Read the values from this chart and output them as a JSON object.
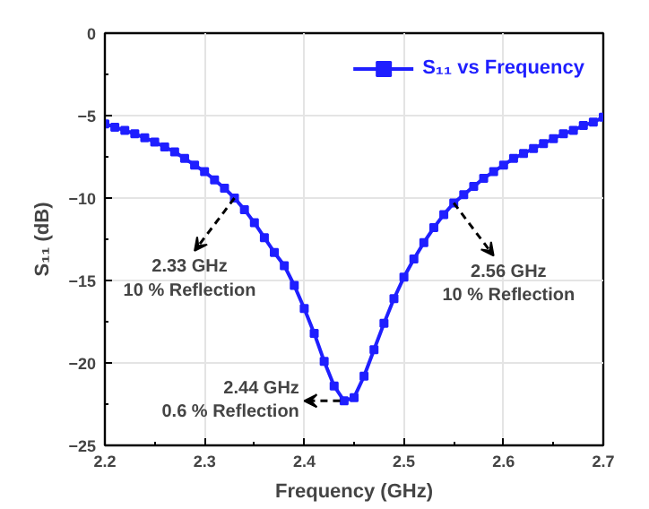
{
  "chart_data": {
    "type": "line",
    "xlabel": "Frequency (GHz)",
    "ylabel": "S₁₁ (dB)",
    "x": [
      2.2,
      2.21,
      2.22,
      2.23,
      2.24,
      2.25,
      2.26,
      2.27,
      2.28,
      2.29,
      2.3,
      2.31,
      2.32,
      2.33,
      2.34,
      2.35,
      2.36,
      2.37,
      2.38,
      2.39,
      2.4,
      2.41,
      2.42,
      2.43,
      2.44,
      2.45,
      2.46,
      2.47,
      2.48,
      2.49,
      2.5,
      2.51,
      2.52,
      2.53,
      2.54,
      2.55,
      2.56,
      2.57,
      2.58,
      2.59,
      2.6,
      2.61,
      2.62,
      2.63,
      2.64,
      2.65,
      2.66,
      2.67,
      2.68,
      2.69,
      2.7
    ],
    "series": [
      {
        "name": "S₁₁ vs Frequency",
        "color": "#1f1fff",
        "values": [
          -5.5,
          -5.7,
          -5.9,
          -6.1,
          -6.35,
          -6.6,
          -6.9,
          -7.2,
          -7.6,
          -8.0,
          -8.4,
          -8.9,
          -9.4,
          -10.0,
          -10.7,
          -11.5,
          -12.4,
          -13.3,
          -14.1,
          -15.3,
          -16.7,
          -18.2,
          -19.9,
          -21.4,
          -22.3,
          -22.1,
          -20.8,
          -19.2,
          -17.6,
          -16.1,
          -14.8,
          -13.7,
          -12.7,
          -11.8,
          -11.0,
          -10.3,
          -9.8,
          -9.3,
          -8.8,
          -8.4,
          -8.0,
          -7.6,
          -7.3,
          -7.0,
          -6.7,
          -6.4,
          -6.1,
          -5.9,
          -5.6,
          -5.4,
          -5.1
        ]
      }
    ],
    "xlim": [
      2.2,
      2.7
    ],
    "ylim": [
      -25,
      0
    ],
    "xticks": [
      {
        "value": 2.2,
        "label": "2.2"
      },
      {
        "value": 2.3,
        "label": "2.3"
      },
      {
        "value": 2.4,
        "label": "2.4"
      },
      {
        "value": 2.5,
        "label": "2.5"
      },
      {
        "value": 2.6,
        "label": "2.6"
      },
      {
        "value": 2.7,
        "label": "2.7"
      }
    ],
    "yticks": [
      -25,
      -20,
      -15,
      -10,
      -5,
      0
    ],
    "annotations": [
      {
        "text": "2.33 GHz\n10 % Reflection",
        "x": 2.33,
        "y": -10.0
      },
      {
        "text": "2.56 GHz\n10 % Reflection",
        "x": 2.55,
        "y": -10.3
      },
      {
        "text": "2.44 GHz\n0.6 % Reflection",
        "x": 2.44,
        "y": -22.3
      }
    ],
    "grid": true,
    "legend": "top right",
    "marker": "square",
    "line_style": "solid"
  }
}
